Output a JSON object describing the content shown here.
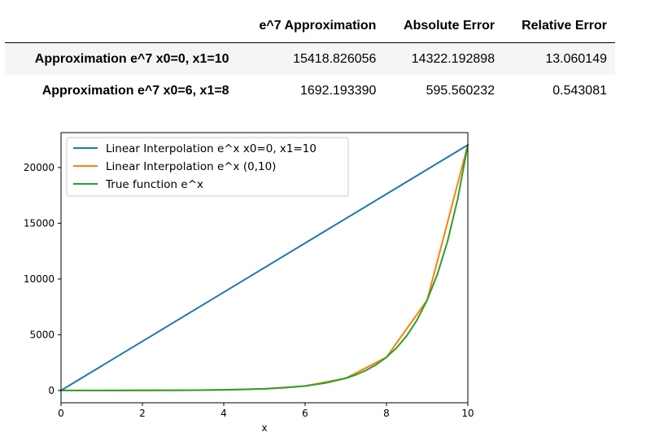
{
  "table": {
    "columns": [
      "e^7 Approximation",
      "Absolute Error",
      "Relative Error"
    ],
    "rows": [
      {
        "label": "Approximation e^7 x0=0, x1=10",
        "values": [
          "15418.826056",
          "14322.192898",
          "13.060149"
        ]
      },
      {
        "label": "Approximation e^7 x0=6, x1=8",
        "values": [
          "1692.193390",
          "595.560232",
          "0.543081"
        ]
      }
    ]
  },
  "chart_data": {
    "type": "line",
    "title": "",
    "xlabel": "x",
    "ylabel": "",
    "xlim": [
      0,
      10
    ],
    "ylim": [
      -1101.3,
      23128.3
    ],
    "xticks": [
      0,
      2,
      4,
      6,
      8,
      10
    ],
    "yticks": [
      0,
      5000,
      10000,
      15000,
      20000
    ],
    "grid": false,
    "legend_position": "top-left",
    "series": [
      {
        "name": "Linear Interpolation e^x x0=0, x1=10",
        "color": "#1f77b4",
        "x": [
          0,
          10
        ],
        "y": [
          1,
          22026.47
        ]
      },
      {
        "name": "Linear Interpolation e^x (0,10)",
        "color": "#ff7f0e",
        "x": [
          0,
          1,
          2,
          3,
          4,
          5,
          6,
          7,
          8,
          9,
          10
        ],
        "y": [
          1,
          2.72,
          7.39,
          20.09,
          54.6,
          148.41,
          403.43,
          1096.63,
          2980.96,
          8103.08,
          22026.47
        ]
      },
      {
        "name": "True function e^x",
        "color": "#2ca02c",
        "x": [
          0,
          0.5,
          1,
          1.5,
          2,
          2.5,
          3,
          3.5,
          4,
          4.5,
          5,
          5.5,
          6,
          6.5,
          7,
          7.25,
          7.5,
          7.75,
          8,
          8.25,
          8.5,
          8.75,
          9,
          9.25,
          9.5,
          9.75,
          10
        ],
        "y": [
          1,
          1.65,
          2.72,
          4.48,
          7.39,
          12.18,
          20.09,
          33.12,
          54.6,
          90.02,
          148.41,
          244.69,
          403.43,
          665.14,
          1096.63,
          1408.1,
          1808.04,
          2321.57,
          2980.96,
          3827.63,
          4914.77,
          6310.69,
          8103.08,
          10404.57,
          13359.73,
          17154.23,
          22026.47
        ]
      }
    ]
  }
}
